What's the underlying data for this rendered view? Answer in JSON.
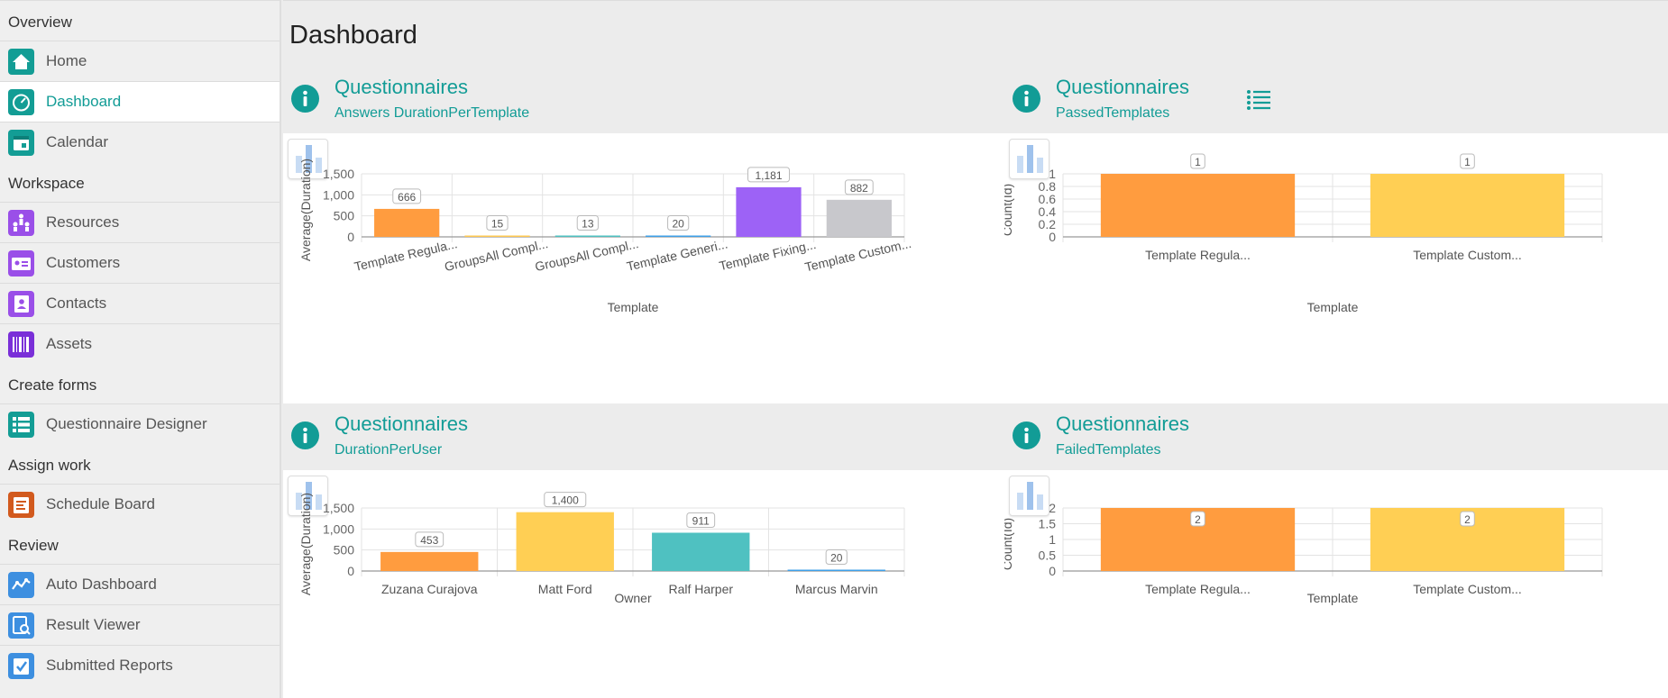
{
  "sidebar": {
    "sections": [
      {
        "title": "Overview",
        "items": [
          {
            "label": "Home",
            "icon": "home-icon",
            "color": "#139d95"
          },
          {
            "label": "Dashboard",
            "icon": "dashboard-gauge-icon",
            "color": "#139d95",
            "active": true
          },
          {
            "label": "Calendar",
            "icon": "calendar-icon",
            "color": "#139d95"
          }
        ]
      },
      {
        "title": "Workspace",
        "items": [
          {
            "label": "Resources",
            "icon": "resources-people-icon",
            "color": "#9a4fe8"
          },
          {
            "label": "Customers",
            "icon": "customers-card-icon",
            "color": "#9a4fe8"
          },
          {
            "label": "Contacts",
            "icon": "contacts-book-icon",
            "color": "#9a4fe8"
          },
          {
            "label": "Assets",
            "icon": "assets-barcode-icon",
            "color": "#7a2fd8"
          }
        ]
      },
      {
        "title": "Create forms",
        "items": [
          {
            "label": "Questionnaire Designer",
            "icon": "questionnaire-list-icon",
            "color": "#139d95"
          }
        ]
      },
      {
        "title": "Assign work",
        "items": [
          {
            "label": "Schedule Board",
            "icon": "schedule-board-icon",
            "color": "#d25a1e"
          }
        ]
      },
      {
        "title": "Review",
        "items": [
          {
            "label": "Auto Dashboard",
            "icon": "auto-dashboard-icon",
            "color": "#3d8fe0"
          },
          {
            "label": "Result Viewer",
            "icon": "result-viewer-icon",
            "color": "#3d8fe0"
          },
          {
            "label": "Submitted Reports",
            "icon": "submitted-reports-icon",
            "color": "#3d8fe0"
          }
        ]
      }
    ]
  },
  "page": {
    "title": "Dashboard"
  },
  "panels": [
    {
      "title": "Questionnaires",
      "subtitle": "Answers DurationPerTemplate"
    },
    {
      "title": "Questionnaires",
      "subtitle": "PassedTemplates"
    },
    {
      "title": "Questionnaires",
      "subtitle": "DurationPerUser"
    },
    {
      "title": "Questionnaires",
      "subtitle": "FailedTemplates"
    }
  ],
  "colors": {
    "accent": "#129c96"
  },
  "chart_data": [
    {
      "type": "bar",
      "categories": [
        "Template Regula...",
        "GroupsAll Compl...",
        "GroupsAll Compl...",
        "Template Generi...",
        "Template Fixing...",
        "Template Custom..."
      ],
      "values": [
        666,
        15,
        13,
        20,
        1181,
        882
      ],
      "data_labels": [
        "666",
        "15",
        "13",
        "20",
        "1,181",
        "882"
      ],
      "colors": [
        "#ff9c3f",
        "#ffc952",
        "#4fc1c1",
        "#3fa0e8",
        "#9d62f6",
        "#c8c8cc"
      ],
      "xlabel": "Template",
      "ylabel": "Average(Duration)",
      "ylim": [
        0,
        1500
      ],
      "yticks": [
        "0",
        "500",
        "1,000",
        "1,500"
      ],
      "grid": true
    },
    {
      "type": "bar",
      "categories": [
        "Template Regula...",
        "Template Custom..."
      ],
      "values": [
        1,
        1
      ],
      "data_labels": [
        "1",
        "1"
      ],
      "colors": [
        "#ff9c3f",
        "#ffcf54"
      ],
      "xlabel": "Template",
      "ylabel": "Count(Id)",
      "ylim": [
        0,
        1
      ],
      "yticks": [
        "0",
        "0.2",
        "0.4",
        "0.6",
        "0.8",
        "1"
      ],
      "grid": true
    },
    {
      "type": "bar",
      "categories": [
        "Zuzana Curajova",
        "Matt Ford",
        "Ralf Harper",
        "Marcus Marvin"
      ],
      "values": [
        453,
        1400,
        911,
        20
      ],
      "data_labels": [
        "453",
        "1,400",
        "911",
        "20"
      ],
      "colors": [
        "#ff9c3f",
        "#ffcf54",
        "#4fc1c1",
        "#3fa0e8"
      ],
      "xlabel": "Owner",
      "ylabel": "Average(Duration)",
      "ylim": [
        0,
        1500
      ],
      "yticks": [
        "0",
        "500",
        "1,000",
        "1,500"
      ],
      "grid": true
    },
    {
      "type": "bar",
      "categories": [
        "Template Regula...",
        "Template Custom..."
      ],
      "values": [
        2,
        2
      ],
      "data_labels": [
        "2",
        "2"
      ],
      "colors": [
        "#ff9c3f",
        "#ffcf54"
      ],
      "xlabel": "Template",
      "ylabel": "Count(Id)",
      "ylim": [
        0,
        2
      ],
      "yticks": [
        "0",
        "0.5",
        "1",
        "1.5",
        "2"
      ],
      "grid": true
    }
  ]
}
